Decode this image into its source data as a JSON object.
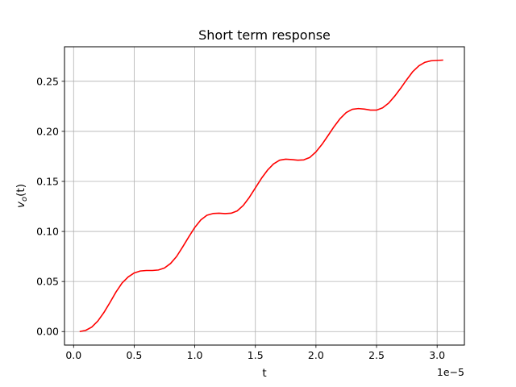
{
  "chart_data": {
    "type": "line",
    "title": "Short term response",
    "xlabel": "t",
    "ylabel_parts": {
      "v": "v",
      "sub": "o",
      "paren": "(t)"
    },
    "x_offset_label": "1e−5",
    "x_ticks": [
      0.0,
      0.5,
      1.0,
      1.5,
      2.0,
      2.5,
      3.0
    ],
    "x_tick_labels": [
      "0.0",
      "0.5",
      "1.0",
      "1.5",
      "2.0",
      "2.5",
      "3.0"
    ],
    "y_ticks": [
      0.0,
      0.05,
      0.1,
      0.15,
      0.2,
      0.25
    ],
    "y_tick_labels": [
      "0.00",
      "0.05",
      "0.10",
      "0.15",
      "0.20",
      "0.25"
    ],
    "xlim": [
      -0.075,
      3.225
    ],
    "ylim": [
      -0.0135,
      0.2845
    ],
    "grid": true,
    "x_scale_note": "x values in units of 1e-5",
    "series": [
      {
        "color": "#ff0000",
        "x": [
          0.05,
          0.1,
          0.15,
          0.2,
          0.25,
          0.3,
          0.35,
          0.4,
          0.45,
          0.5,
          0.55,
          0.6,
          0.65,
          0.7,
          0.75,
          0.8,
          0.85,
          0.9,
          0.95,
          1.0,
          1.05,
          1.1,
          1.15,
          1.2,
          1.25,
          1.3,
          1.35,
          1.4,
          1.45,
          1.5,
          1.55,
          1.6,
          1.65,
          1.7,
          1.75,
          1.8,
          1.85,
          1.9,
          1.95,
          2.0,
          2.05,
          2.1,
          2.15,
          2.2,
          2.25,
          2.3,
          2.35,
          2.4,
          2.45,
          2.5,
          2.55,
          2.6,
          2.65,
          2.7,
          2.75,
          2.8,
          2.85,
          2.9,
          2.95,
          3.0,
          3.05
        ],
        "y": [
          0.0,
          0.0012,
          0.0045,
          0.0105,
          0.019,
          0.029,
          0.0395,
          0.0485,
          0.0545,
          0.0585,
          0.0605,
          0.061,
          0.061,
          0.0615,
          0.0635,
          0.068,
          0.075,
          0.0845,
          0.0945,
          0.104,
          0.1115,
          0.1162,
          0.1179,
          0.1182,
          0.1178,
          0.1182,
          0.1205,
          0.126,
          0.134,
          0.1435,
          0.153,
          0.1612,
          0.1675,
          0.1712,
          0.1722,
          0.1718,
          0.1712,
          0.1715,
          0.174,
          0.1795,
          0.187,
          0.1958,
          0.2048,
          0.2128,
          0.2188,
          0.222,
          0.2228,
          0.2222,
          0.2212,
          0.2212,
          0.2235,
          0.2282,
          0.2352,
          0.2432,
          0.2518,
          0.2598,
          0.2655,
          0.269,
          0.2705,
          0.2708,
          0.2712
        ]
      }
    ]
  }
}
